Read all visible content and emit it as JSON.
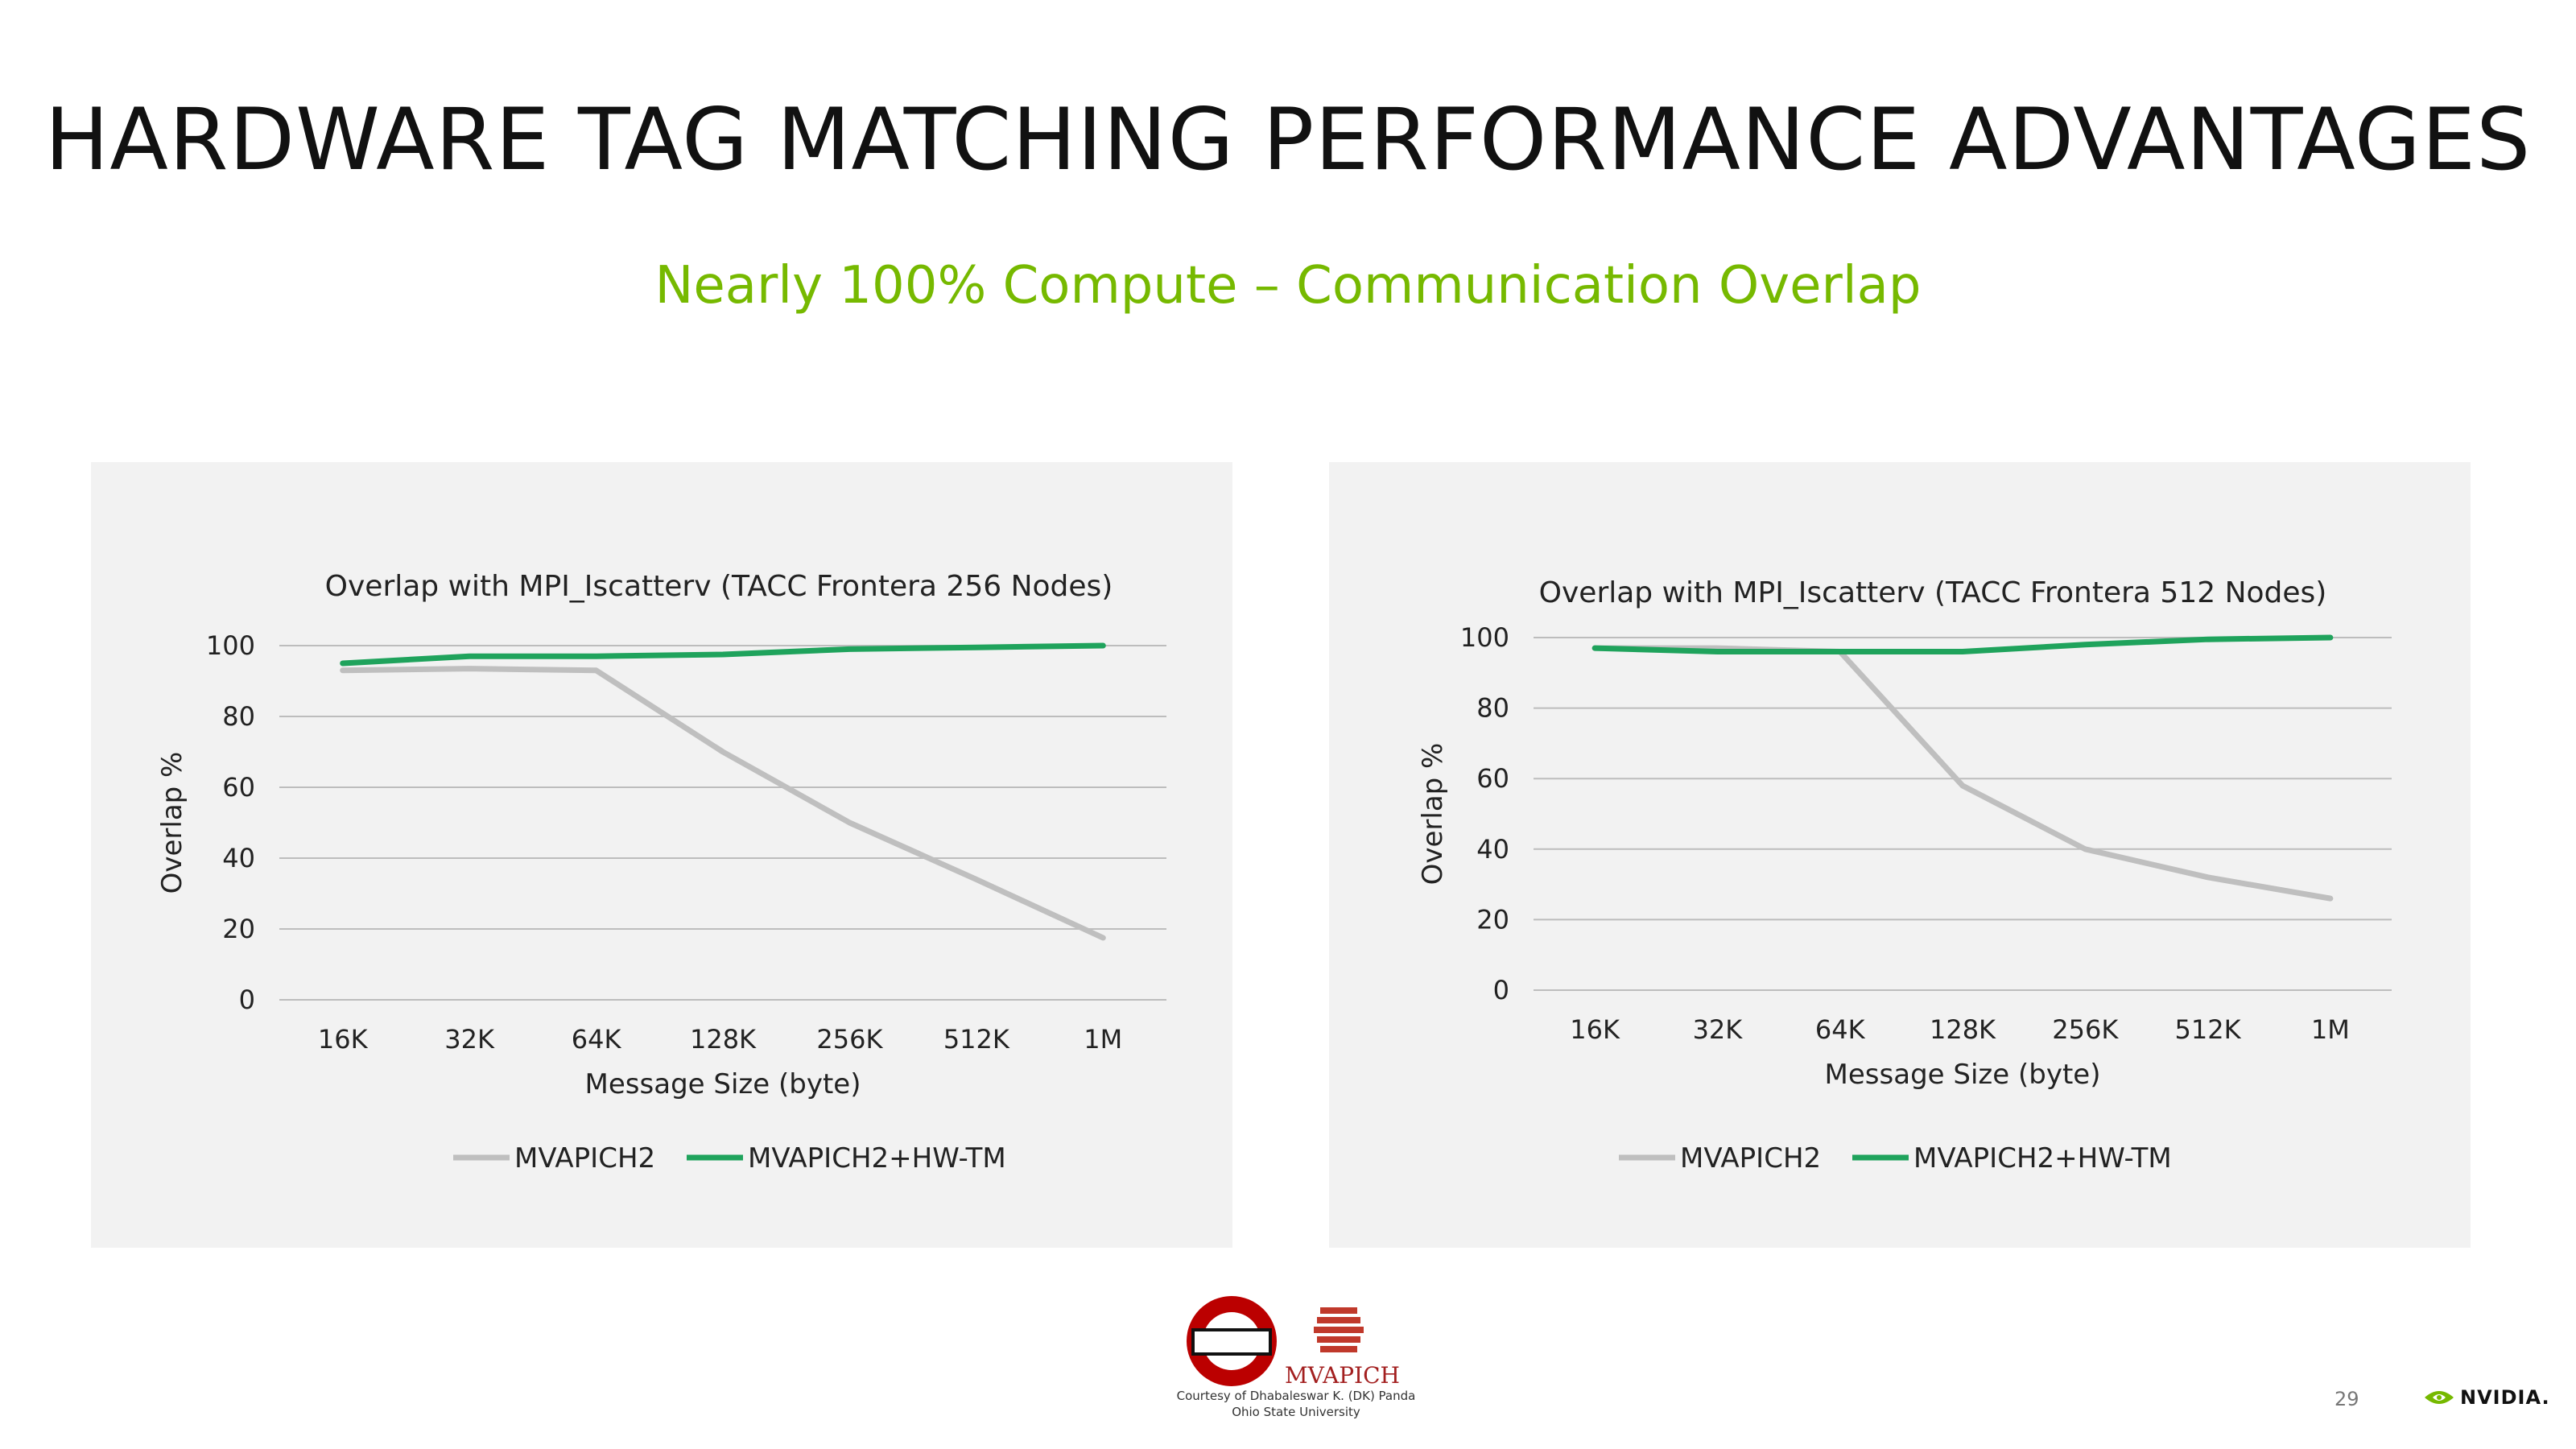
{
  "slide": {
    "title": "HARDWARE TAG MATCHING PERFORMANCE ADVANTAGES",
    "subtitle": "Nearly 100% Compute – Communication Overlap",
    "page_number": "29",
    "courtesy_line1": "Courtesy of Dhabaleswar K. (DK) Panda",
    "courtesy_line2": "Ohio State University",
    "mvapich_logo_text": "MVAPICH",
    "nvidia_logo_text": "NVIDIA."
  },
  "colors": {
    "accent": "#76b900",
    "mvapich2": "#bfbfbf",
    "mvapich2_hwtm": "#1fa35c",
    "panel_bg": "#f2f2f2",
    "grid": "#bdbdbd"
  },
  "chart_data": [
    {
      "type": "line",
      "title": "Overlap with MPI_Iscatterv (TACC Frontera 256 Nodes)",
      "xlabel": "Message Size  (byte)",
      "ylabel": "Overlap %",
      "categories": [
        "16K",
        "32K",
        "64K",
        "128K",
        "256K",
        "512K",
        "1M"
      ],
      "yticks": [
        "0",
        "20",
        "40",
        "60",
        "80",
        "100"
      ],
      "ylim": [
        0,
        100
      ],
      "grid": true,
      "legend_position": "bottom",
      "series": [
        {
          "name": "MVAPICH2",
          "values": [
            93,
            93.5,
            93,
            70,
            50,
            34,
            17.5
          ]
        },
        {
          "name": "MVAPICH2+HW-TM",
          "values": [
            95,
            97,
            97,
            97.5,
            99,
            99.5,
            100
          ]
        }
      ]
    },
    {
      "type": "line",
      "title": "Overlap with MPI_Iscatterv (TACC Frontera 512 Nodes)",
      "xlabel": "Message Size (byte)",
      "ylabel": "Overlap %",
      "categories": [
        "16K",
        "32K",
        "64K",
        "128K",
        "256K",
        "512K",
        "1M"
      ],
      "yticks": [
        "0",
        "20",
        "40",
        "60",
        "80",
        "100"
      ],
      "ylim": [
        0,
        100
      ],
      "grid": true,
      "legend_position": "bottom",
      "series": [
        {
          "name": "MVAPICH2",
          "values": [
            97,
            97,
            96,
            58,
            40,
            32,
            26
          ]
        },
        {
          "name": "MVAPICH2+HW-TM",
          "values": [
            97,
            96,
            96,
            96,
            98,
            99.5,
            100
          ]
        }
      ]
    }
  ]
}
